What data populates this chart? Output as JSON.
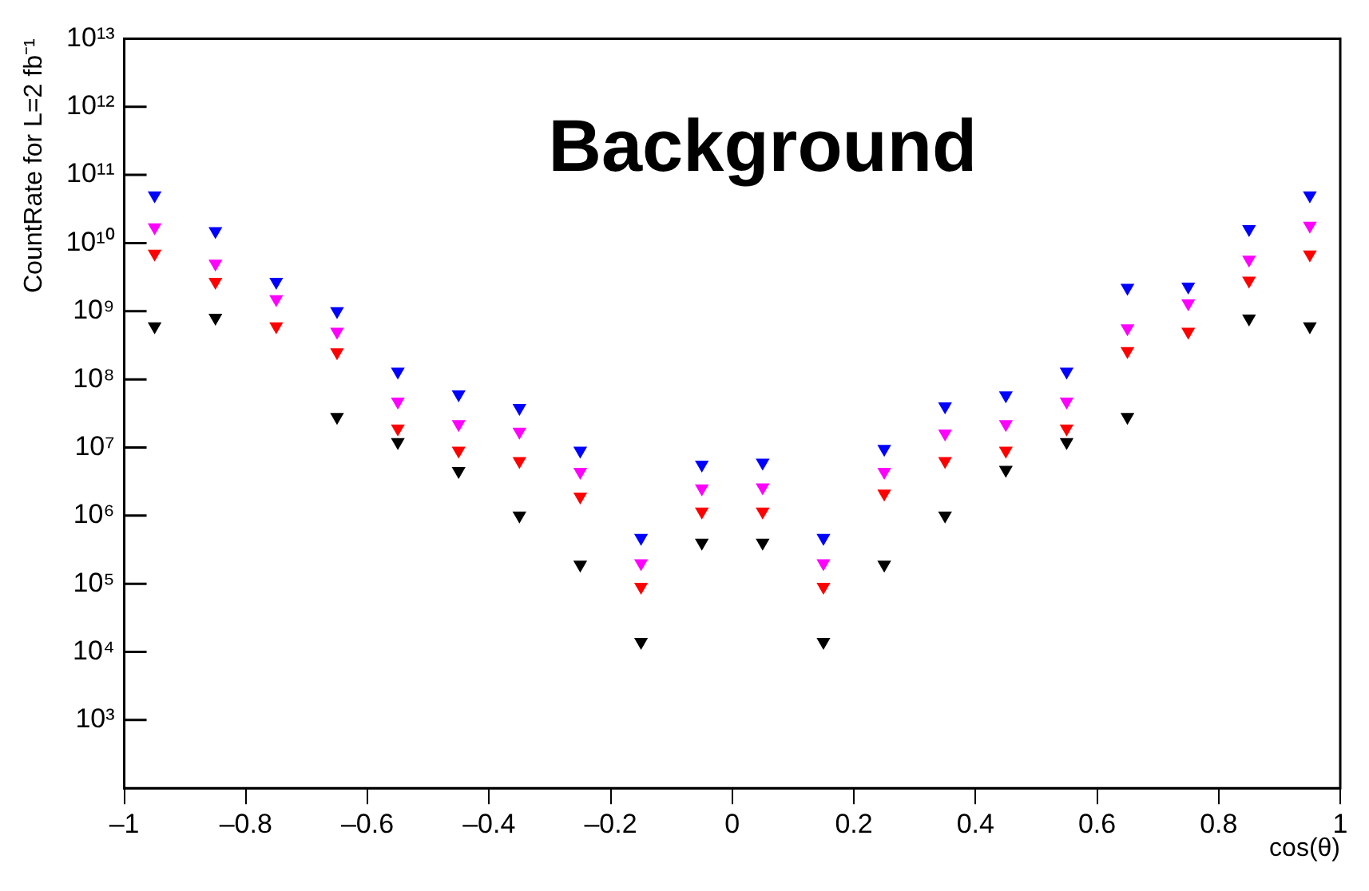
{
  "chart_data": {
    "type": "scatter",
    "title": "Background",
    "xlabel": "cos(θ)",
    "ylabel": "CountRate for L=2 fb⁻¹",
    "log": "y",
    "marker": "triangle",
    "grid": false,
    "legend": false,
    "x": [
      -0.95,
      -0.85,
      -0.75,
      -0.65,
      -0.55,
      -0.45,
      -0.35,
      -0.25,
      -0.15,
      -0.05,
      0.05,
      0.15,
      0.25,
      0.35,
      0.45,
      0.55,
      0.65,
      0.75,
      0.85,
      0.95
    ],
    "xlim": [
      -1,
      1
    ],
    "xticks": [
      {
        "value": -1,
        "label": "–1"
      },
      {
        "value": -0.8,
        "label": "–0.8"
      },
      {
        "value": -0.6,
        "label": "–0.6"
      },
      {
        "value": -0.4,
        "label": "–0.4"
      },
      {
        "value": -0.2,
        "label": "–0.2"
      },
      0,
      0.2,
      0.4,
      0.6,
      0.8,
      1
    ],
    "ylim": [
      100,
      10000000000000.0
    ],
    "yticks": [
      {
        "value": 1000.0,
        "label": "10³"
      },
      {
        "value": 10000.0,
        "label": "10⁴"
      },
      {
        "value": 100000.0,
        "label": "10⁵"
      },
      {
        "value": 1000000.0,
        "label": "10⁶"
      },
      {
        "value": 10000000.0,
        "label": "10⁷"
      },
      {
        "value": 100000000.0,
        "label": "10⁸"
      },
      {
        "value": 1000000000.0,
        "label": "10⁹"
      },
      {
        "value": 10000000000.0,
        "label": "10¹⁰"
      },
      {
        "value": 100000000000.0,
        "label": "10¹¹"
      },
      {
        "value": 1000000000000.0,
        "label": "10¹²"
      },
      {
        "value": 10000000000000.0,
        "label": "10¹³"
      }
    ],
    "series": [
      {
        "color": "#0000ff",
        "values": [
          50000000000.0,
          15000000000.0,
          2700000000.0,
          1000000000.0,
          130000000.0,
          60000000.0,
          38000000.0,
          9000000.0,
          470000.0,
          5600000.0,
          6000000.0,
          470000.0,
          9500000.0,
          40000000.0,
          58000000.0,
          130000000.0,
          2200000000.0,
          2300000000.0,
          16000000000.0,
          50000000000.0
        ]
      },
      {
        "color": "#ff00ff",
        "values": [
          17000000000.0,
          5000000000.0,
          1500000000.0,
          500000000.0,
          47000000.0,
          22000000.0,
          17000000.0,
          4400000.0,
          200000.0,
          2500000.0,
          2600000.0,
          200000.0,
          4400000.0,
          16000000.0,
          22000000.0,
          47000000.0,
          560000000.0,
          1300000000.0,
          5700000000.0,
          18000000000.0
        ]
      },
      {
        "color": "#ff0000",
        "values": [
          7000000000.0,
          2700000000.0,
          600000000.0,
          250000000.0,
          19000000.0,
          9000000.0,
          6300000.0,
          1900000.0,
          90000.0,
          1150000.0,
          1150000.0,
          90000.0,
          2100000.0,
          6300000.0,
          9000000.0,
          19000000.0,
          260000000.0,
          500000000.0,
          2800000000.0,
          6800000000.0
        ]
      },
      {
        "color": "#000000",
        "values": [
          600000000.0,
          800000000.0,
          null,
          28000000.0,
          12000000.0,
          4500000.0,
          1000000.0,
          190000.0,
          14000.0,
          400000.0,
          400000.0,
          14000.0,
          190000.0,
          1000000.0,
          4700000.0,
          12000000.0,
          28000000.0,
          null,
          780000000.0,
          600000000.0
        ]
      }
    ]
  }
}
